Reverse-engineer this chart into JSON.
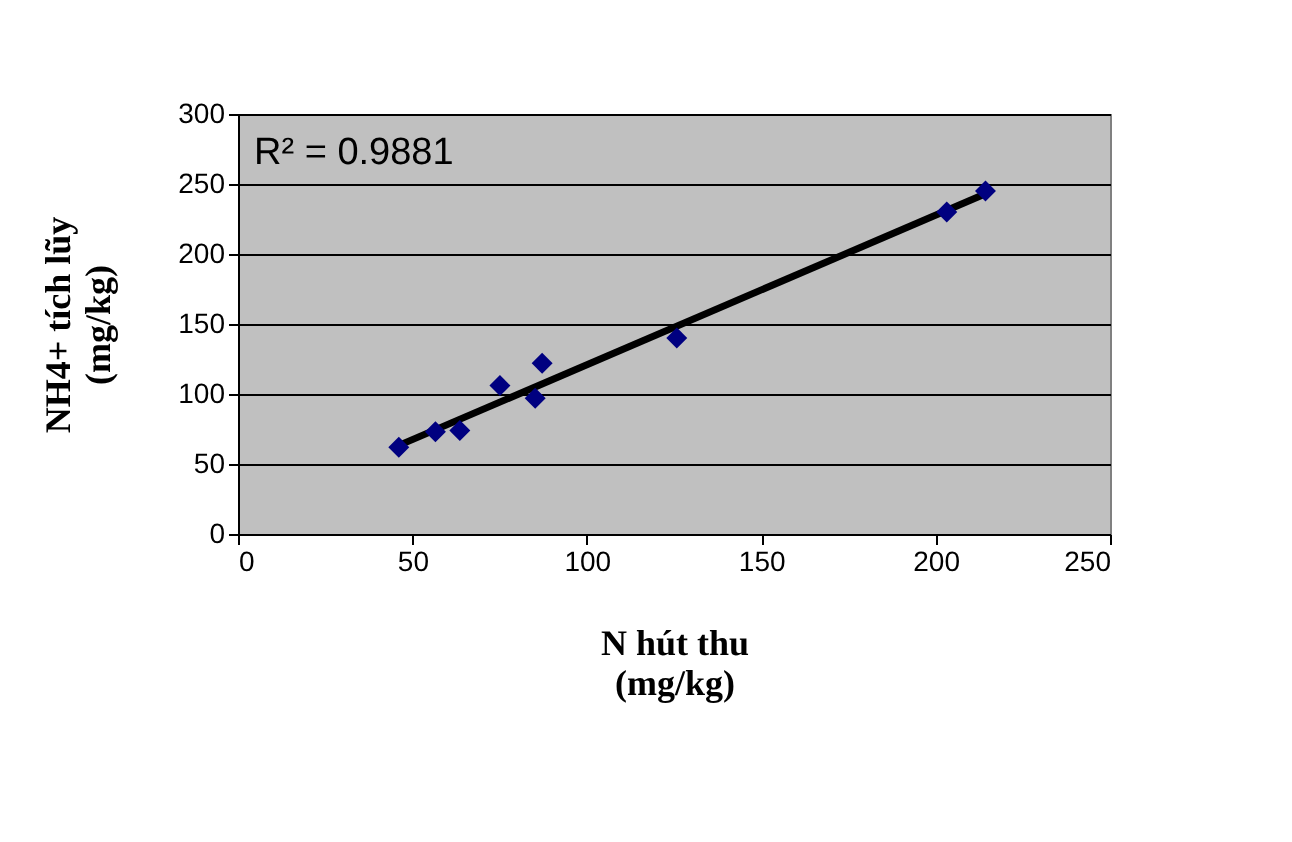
{
  "chart_data": {
    "type": "scatter",
    "xlabel": "N hút thu\n(mg/kg)",
    "ylabel": "NH4+ tích lũy\n(mg/kg)",
    "annotations": [
      "R² = 0.9881"
    ],
    "series": [
      {
        "color": "#000080",
        "marker": "diamond",
        "x": [
          46.1,
          56.6,
          63.6,
          75.1,
          85.2,
          87.2,
          125.8,
          203.2,
          214.3
        ],
        "values": [
          62,
          73,
          74,
          106,
          97,
          122,
          140,
          230,
          245
        ]
      },
      {
        "type": "line",
        "color": "#000000",
        "line_style": "solid",
        "x": [
          46.8,
          214.3
        ],
        "values": [
          64,
          243
        ]
      }
    ],
    "xlim": [
      0,
      250
    ],
    "xticks": [
      0,
      50,
      100,
      150,
      200,
      250
    ],
    "ylim": [
      0,
      300
    ],
    "yticks": [
      0,
      50,
      100,
      150,
      200,
      250,
      300
    ],
    "grid": "y",
    "legend": false
  }
}
